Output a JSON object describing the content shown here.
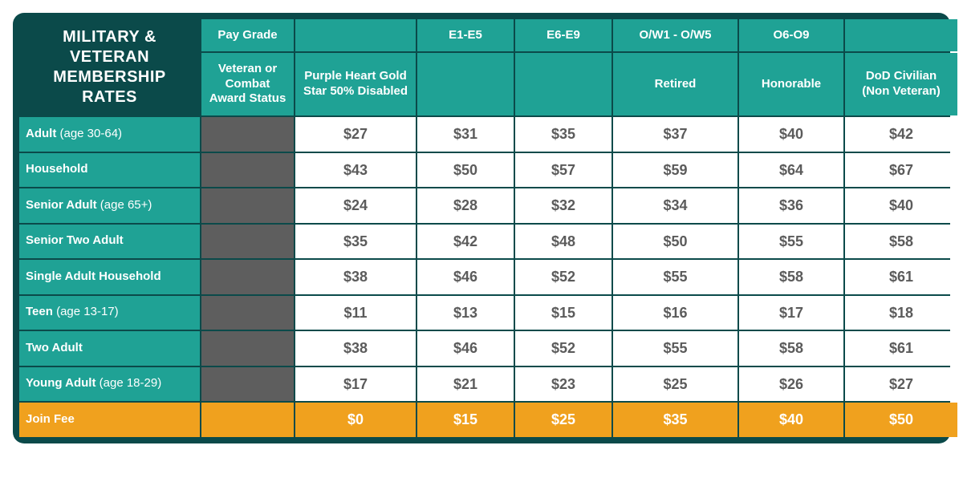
{
  "title": "MILITARY & VETERAN MEMBERSHIP RATES",
  "colors": {
    "frame": "#0b4a4a",
    "header_bg": "#1fa295",
    "header_text": "#ffffff",
    "data_bg": "#ffffff",
    "data_text": "#5b5b5b",
    "grey_cell": "#5e5e5e",
    "fee_bg": "#f0a11e",
    "fee_text": "#ffffff"
  },
  "header": {
    "row1": {
      "col1": "Pay Grade",
      "col2": "",
      "col3": "E1-E5",
      "col4": "E6-E9",
      "col5": "O/W1 - O/W5",
      "col6": "O6-O9",
      "col7": ""
    },
    "row2": {
      "col1": "Veteran or Combat Award Status",
      "col2": "Purple Heart Gold Star 50% Disabled",
      "col3": "",
      "col4": "",
      "col5": "Retired",
      "col6": "Honorable",
      "col7": "DoD Civilian (Non Veteran)"
    }
  },
  "rows": [
    {
      "label": "Adult",
      "note": " (age 30-64)",
      "c2": "$27",
      "c3": "$31",
      "c4": "$35",
      "c5": "$37",
      "c6": "$40",
      "c7": "$42"
    },
    {
      "label": "Household",
      "note": "",
      "c2": "$43",
      "c3": "$50",
      "c4": "$57",
      "c5": "$59",
      "c6": "$64",
      "c7": "$67"
    },
    {
      "label": "Senior Adult",
      "note": " (age 65+)",
      "c2": "$24",
      "c3": "$28",
      "c4": "$32",
      "c5": "$34",
      "c6": "$36",
      "c7": "$40"
    },
    {
      "label": "Senior Two Adult",
      "note": "",
      "c2": "$35",
      "c3": "$42",
      "c4": "$48",
      "c5": "$50",
      "c6": "$55",
      "c7": "$58"
    },
    {
      "label": "Single Adult Household",
      "note": "",
      "c2": "$38",
      "c3": "$46",
      "c4": "$52",
      "c5": "$55",
      "c6": "$58",
      "c7": "$61"
    },
    {
      "label": "Teen",
      "note": " (age 13-17)",
      "c2": "$11",
      "c3": "$13",
      "c4": "$15",
      "c5": "$16",
      "c6": "$17",
      "c7": "$18"
    },
    {
      "label": "Two Adult",
      "note": "",
      "c2": "$38",
      "c3": "$46",
      "c4": "$52",
      "c5": "$55",
      "c6": "$58",
      "c7": "$61"
    },
    {
      "label": "Young Adult",
      "note": " (age 18-29)",
      "c2": "$17",
      "c3": "$21",
      "c4": "$23",
      "c5": "$25",
      "c6": "$26",
      "c7": "$27"
    }
  ],
  "fee": {
    "label": "Join Fee",
    "c2": "$0",
    "c3": "$15",
    "c4": "$25",
    "c5": "$35",
    "c6": "$40",
    "c7": "$50"
  }
}
